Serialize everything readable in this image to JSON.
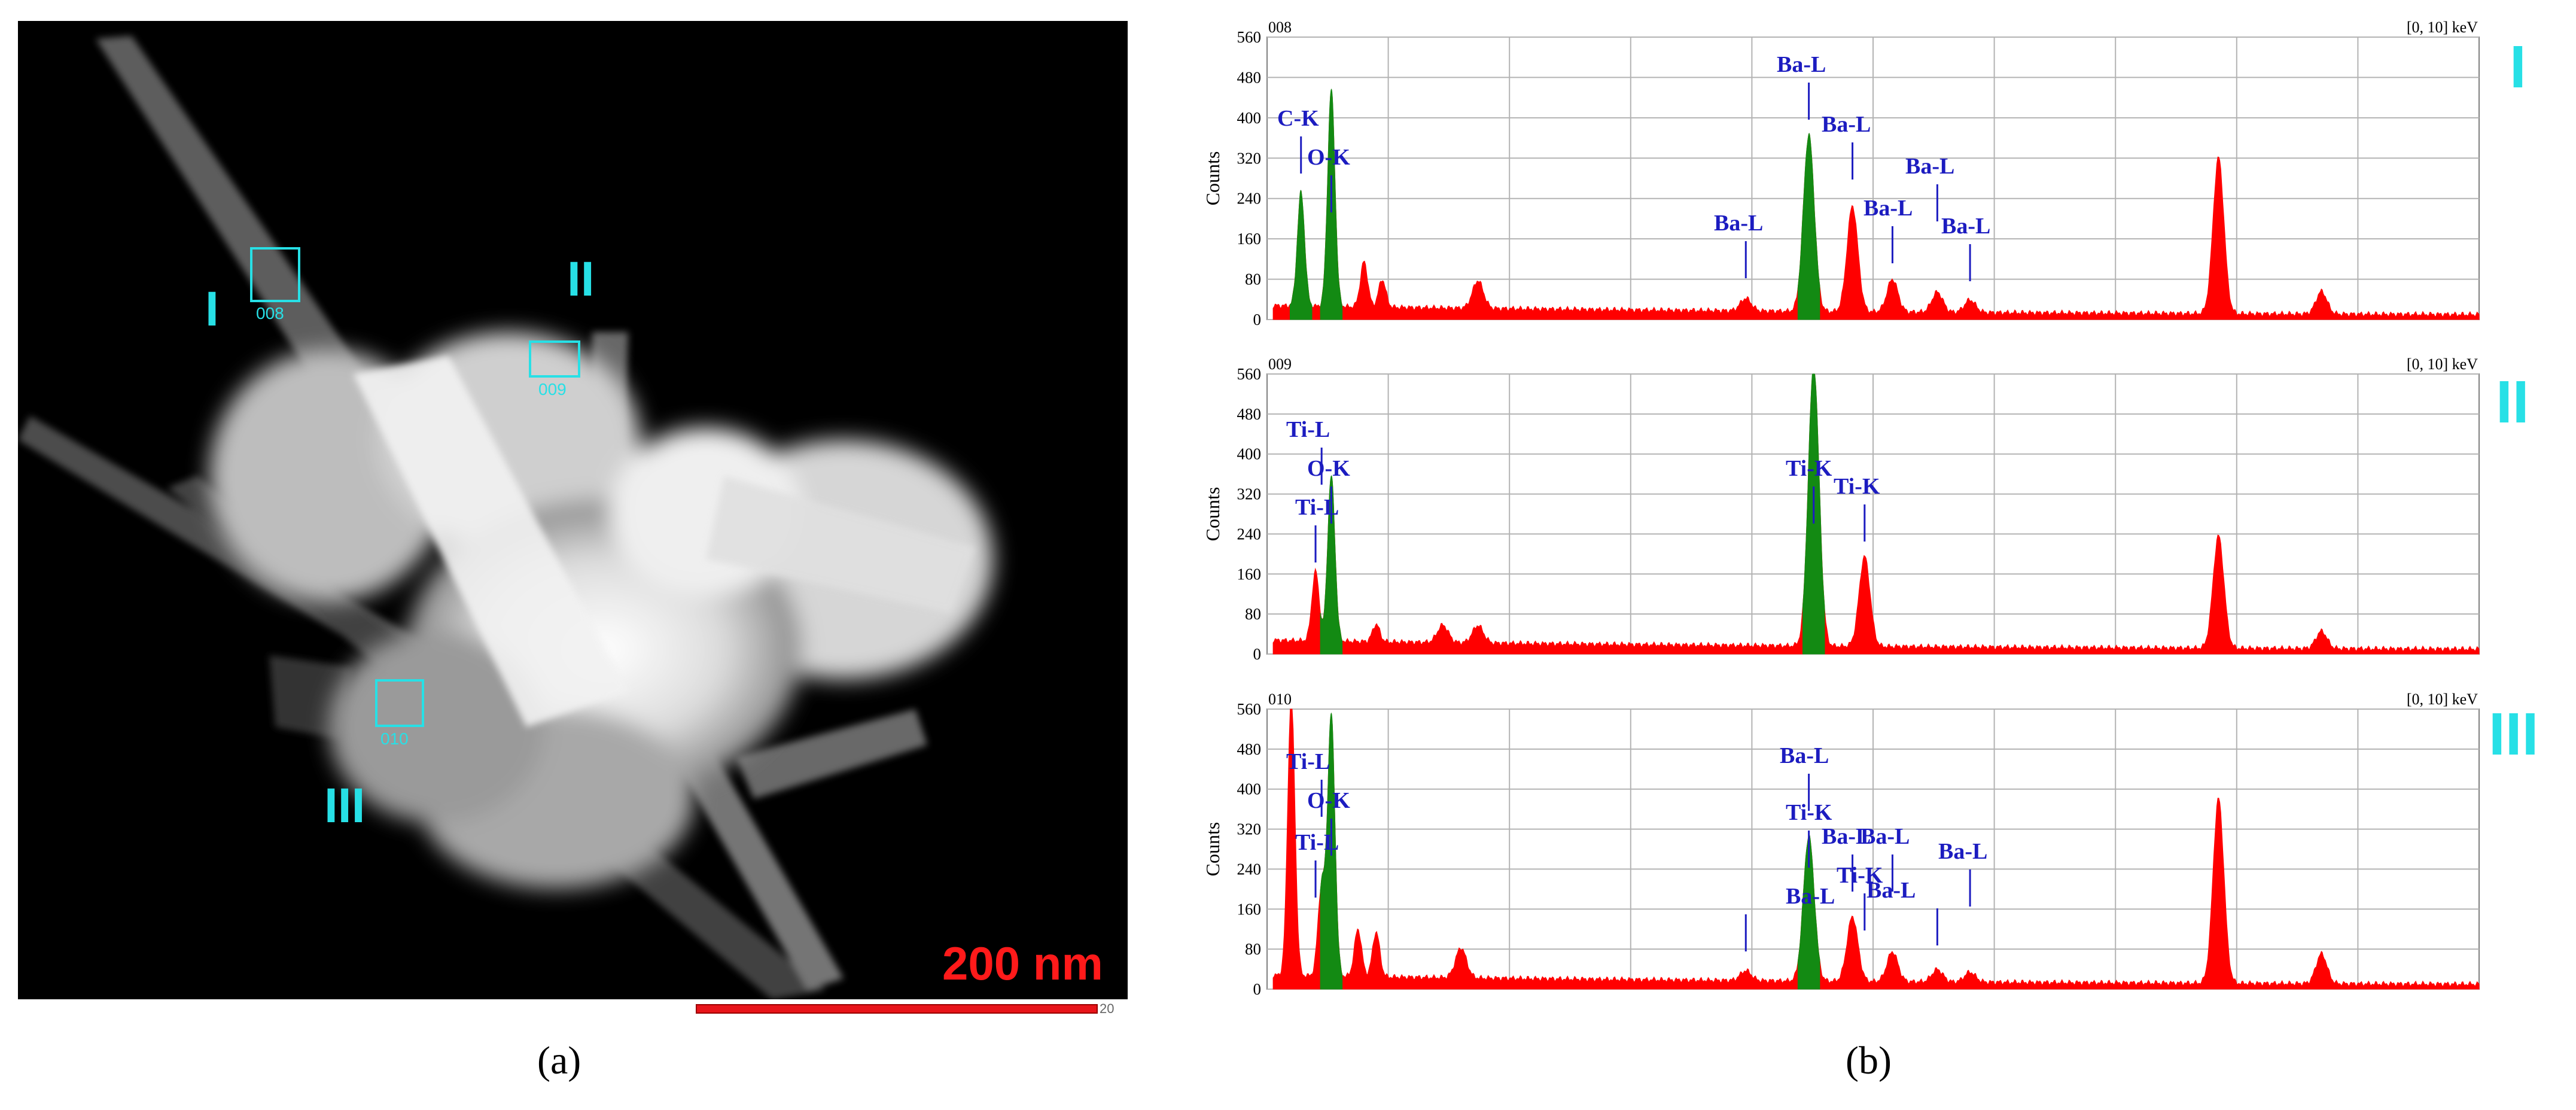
{
  "panel_a": {
    "caption": "(a)",
    "scale_label": "200 nm",
    "scale_tick": "20",
    "regions": [
      {
        "label": "I",
        "box_id": "008"
      },
      {
        "label": "II",
        "box_id": "009"
      },
      {
        "label": "III",
        "box_id": "010"
      }
    ]
  },
  "panel_b": {
    "caption": "(b)"
  },
  "colors": {
    "spectrum": "#ff0000",
    "peak_highlight": "#138a13",
    "marker": "#1c1cc0",
    "grid": "#b3b3b3",
    "region_label": "#27e0e6"
  },
  "chart_data": [
    {
      "type": "area",
      "spectrum_id": "008",
      "region_label": "I",
      "range_label": "[0, 10] keV",
      "ylabel": "Counts",
      "ylim": [
        0,
        560
      ],
      "xlim": [
        0,
        10
      ],
      "yticks": [
        0,
        80,
        160,
        240,
        320,
        400,
        480,
        560
      ],
      "grid": true,
      "peaks_keV_counts": [
        [
          0.28,
          225
        ],
        [
          0.53,
          430
        ],
        [
          0.8,
          90
        ],
        [
          0.95,
          55
        ],
        [
          1.74,
          55
        ],
        [
          3.95,
          25
        ],
        [
          4.47,
          350
        ],
        [
          4.83,
          210
        ],
        [
          5.16,
          65
        ],
        [
          5.53,
          40
        ],
        [
          5.8,
          25
        ],
        [
          7.85,
          310
        ],
        [
          8.7,
          45
        ]
      ],
      "highlighted_peaks_keV": [
        0.28,
        0.53,
        4.47
      ],
      "annotations": [
        {
          "text": "C-K",
          "x": 0.28
        },
        {
          "text": "O-K",
          "x": 0.53
        },
        {
          "text": "Ba-L",
          "x": 3.95
        },
        {
          "text": "Ba-L",
          "x": 4.47
        },
        {
          "text": "Ba-L",
          "x": 4.83
        },
        {
          "text": "Ba-L",
          "x": 5.16
        },
        {
          "text": "Ba-L",
          "x": 5.53
        },
        {
          "text": "Ba-L",
          "x": 5.8
        }
      ]
    },
    {
      "type": "area",
      "spectrum_id": "009",
      "region_label": "II",
      "range_label": "[0, 10] keV",
      "ylabel": "Counts",
      "ylim": [
        0,
        560
      ],
      "xlim": [
        0,
        10
      ],
      "yticks": [
        0,
        80,
        160,
        240,
        320,
        400,
        480,
        560
      ],
      "grid": true,
      "peaks_keV_counts": [
        [
          0.4,
          140
        ],
        [
          0.53,
          330
        ],
        [
          0.9,
          35
        ],
        [
          1.45,
          35
        ],
        [
          1.74,
          35
        ],
        [
          4.51,
          560
        ],
        [
          4.93,
          180
        ],
        [
          7.85,
          225
        ],
        [
          8.7,
          35
        ]
      ],
      "highlighted_peaks_keV": [
        0.53,
        4.51
      ],
      "annotations": [
        {
          "text": "Ti-L",
          "x": 0.45
        },
        {
          "text": "O-K",
          "x": 0.53
        },
        {
          "text": "Ti-L",
          "x": 0.4
        },
        {
          "text": "Ti-K",
          "x": 4.51
        },
        {
          "text": "Ti-K",
          "x": 4.93
        }
      ]
    },
    {
      "type": "area",
      "spectrum_id": "010",
      "region_label": "III",
      "range_label": "[0, 10] keV",
      "ylabel": "Counts",
      "ylim": [
        0,
        560
      ],
      "xlim": [
        0,
        10
      ],
      "yticks": [
        0,
        80,
        160,
        240,
        320,
        400,
        480,
        560
      ],
      "grid": true,
      "peaks_keV_counts": [
        [
          0.2,
          560
        ],
        [
          0.45,
          180
        ],
        [
          0.53,
          520
        ],
        [
          0.75,
          95
        ],
        [
          0.9,
          90
        ],
        [
          1.6,
          60
        ],
        [
          3.95,
          20
        ],
        [
          4.47,
          290
        ],
        [
          4.83,
          130
        ],
        [
          5.16,
          60
        ],
        [
          5.53,
          25
        ],
        [
          5.8,
          20
        ],
        [
          7.85,
          370
        ],
        [
          8.7,
          60
        ]
      ],
      "highlighted_peaks_keV": [
        0.53,
        4.47
      ],
      "annotations": [
        {
          "text": "Ti-L",
          "x": 0.45
        },
        {
          "text": "O-K",
          "x": 0.53
        },
        {
          "text": "Ti-L",
          "x": 0.4
        },
        {
          "text": "Ba-L",
          "x": 3.95
        },
        {
          "text": "Ba-L",
          "x": 4.47
        },
        {
          "text": "Ti-K",
          "x": 4.47
        },
        {
          "text": "Ti-K",
          "x": 4.93
        },
        {
          "text": "Ba-L",
          "x": 4.83
        },
        {
          "text": "Ba-L",
          "x": 5.16
        },
        {
          "text": "Ba-L",
          "x": 5.53
        },
        {
          "text": "Ba-L",
          "x": 5.8
        }
      ]
    }
  ]
}
